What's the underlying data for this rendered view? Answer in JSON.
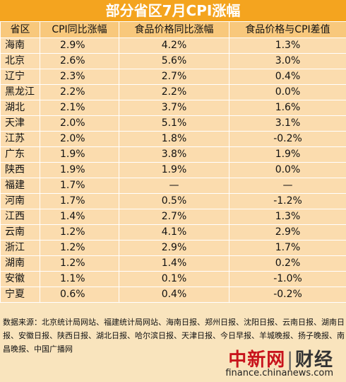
{
  "chart_data": {
    "type": "table",
    "title": "部分省区7月CPI涨幅",
    "columns": [
      "省区",
      "CPI同比涨幅",
      "食品价格同比涨幅",
      "食品价格与CPI差值"
    ],
    "rows": [
      [
        "海南",
        "2.9%",
        "4.2%",
        "1.3%"
      ],
      [
        "北京",
        "2.6%",
        "5.6%",
        "3.0%"
      ],
      [
        "辽宁",
        "2.3%",
        "2.7%",
        "0.4%"
      ],
      [
        "黑龙江",
        "2.2%",
        "2.2%",
        "0.0%"
      ],
      [
        "湖北",
        "2.1%",
        "3.7%",
        "1.6%"
      ],
      [
        "天津",
        "2.0%",
        "5.1%",
        "3.1%"
      ],
      [
        "江苏",
        "2.0%",
        "1.8%",
        "-0.2%"
      ],
      [
        "广东",
        "1.9%",
        "3.8%",
        "1.9%"
      ],
      [
        "陕西",
        "1.9%",
        "1.9%",
        "0.0%"
      ],
      [
        "福建",
        "1.7%",
        "—",
        "—"
      ],
      [
        "河南",
        "1.7%",
        "0.5%",
        "-1.2%"
      ],
      [
        "江西",
        "1.4%",
        "2.7%",
        "1.3%"
      ],
      [
        "云南",
        "1.2%",
        "4.1%",
        "2.9%"
      ],
      [
        "浙江",
        "1.2%",
        "2.9%",
        "1.7%"
      ],
      [
        "湖南",
        "1.2%",
        "1.4%",
        "0.2%"
      ],
      [
        "安徽",
        "1.1%",
        "0.1%",
        "-1.0%"
      ],
      [
        "宁夏",
        "0.6%",
        "0.4%",
        "-0.2%"
      ]
    ]
  },
  "source": "数据来源：北京统计局网站、福建统计局网站、海南日报、郑州日报、沈阳日报、云南日报、湖南日报、安徽日报、陕西日报、湖北日报、哈尔滨日报、天津日报、今日早报、羊城晚报、扬子晚报、南昌晚报、中国广播网",
  "logo": {
    "brand": "中新网",
    "separator": "|",
    "section": "财经",
    "url": "finance.chinanews.com"
  },
  "colors": {
    "title_bg": "#f4a41f",
    "header_bg": "#f8c87c",
    "cell_bg": "#fbdcae",
    "page_bg": "#f9e4bd",
    "logo_red": "#c8141c"
  }
}
